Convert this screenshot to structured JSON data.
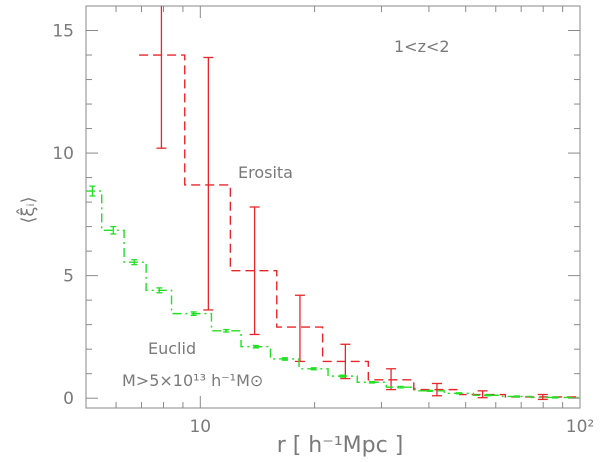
{
  "chart_data": {
    "type": "line",
    "title": "",
    "xlabel": "r [ h⁻¹Mpc ]",
    "ylabel": "⟨ξ̂ᵢ⟩",
    "xscale": "log",
    "xlim": [
      5,
      100
    ],
    "ylim": [
      -0.4,
      16
    ],
    "xticks": [
      {
        "value": 10,
        "label": "10"
      },
      {
        "value": 100,
        "label": "10²"
      }
    ],
    "yticks": [
      {
        "value": 0,
        "label": "0"
      },
      {
        "value": 5,
        "label": "5"
      },
      {
        "value": 10,
        "label": "10"
      },
      {
        "value": 15,
        "label": "15"
      }
    ],
    "annotations": {
      "redshift": "1<z<2",
      "mass_cut": "M>5×10¹³ h⁻¹M⊙"
    },
    "series": [
      {
        "name": "Erosita",
        "color": "#e8262a",
        "style": "dashed-step",
        "bins": [
          {
            "x0": 6.9,
            "x1": 9.1,
            "xc": 7.9,
            "y": 14.0,
            "err_lo": 10.2,
            "err_hi": 16.0
          },
          {
            "x0": 9.1,
            "x1": 12.0,
            "xc": 10.5,
            "y": 8.7,
            "err_lo": 3.6,
            "err_hi": 13.9
          },
          {
            "x0": 12.0,
            "x1": 15.9,
            "xc": 13.9,
            "y": 5.2,
            "err_lo": 2.6,
            "err_hi": 7.8
          },
          {
            "x0": 15.9,
            "x1": 21.0,
            "xc": 18.3,
            "y": 2.9,
            "err_lo": 1.5,
            "err_hi": 4.2
          },
          {
            "x0": 21.0,
            "x1": 27.7,
            "xc": 24.1,
            "y": 1.5,
            "err_lo": 0.8,
            "err_hi": 2.2
          },
          {
            "x0": 27.7,
            "x1": 36.5,
            "xc": 31.8,
            "y": 0.75,
            "err_lo": 0.35,
            "err_hi": 1.2
          },
          {
            "x0": 36.5,
            "x1": 48.2,
            "xc": 42.0,
            "y": 0.35,
            "err_lo": 0.1,
            "err_hi": 0.6
          },
          {
            "x0": 48.2,
            "x1": 63.6,
            "xc": 55.4,
            "y": 0.15,
            "err_lo": 0.02,
            "err_hi": 0.3
          },
          {
            "x0": 63.6,
            "x1": 100,
            "xc": 79.8,
            "y": 0.05,
            "err_lo": -0.05,
            "err_hi": 0.15
          }
        ]
      },
      {
        "name": "Euclid",
        "color": "#22e022",
        "style": "dashdot-step",
        "bins": [
          {
            "x0": 5.0,
            "x1": 5.5,
            "xc": 5.2,
            "y": 8.45,
            "err_lo": 8.25,
            "err_hi": 8.65
          },
          {
            "x0": 5.5,
            "x1": 6.3,
            "xc": 5.9,
            "y": 6.85,
            "err_lo": 6.7,
            "err_hi": 7.0
          },
          {
            "x0": 6.3,
            "x1": 7.2,
            "xc": 6.7,
            "y": 5.55,
            "err_lo": 5.45,
            "err_hi": 5.65
          },
          {
            "x0": 7.2,
            "x1": 8.4,
            "xc": 7.8,
            "y": 4.4,
            "err_lo": 4.3,
            "err_hi": 4.5
          },
          {
            "x0": 8.4,
            "x1": 10.7,
            "xc": 9.6,
            "y": 3.45,
            "err_lo": 3.38,
            "err_hi": 3.52
          },
          {
            "x0": 10.7,
            "x1": 12.8,
            "xc": 11.7,
            "y": 2.75,
            "err_lo": 2.7,
            "err_hi": 2.8
          },
          {
            "x0": 12.8,
            "x1": 15.3,
            "xc": 14.0,
            "y": 2.1,
            "err_lo": 2.05,
            "err_hi": 2.15
          },
          {
            "x0": 15.3,
            "x1": 18.2,
            "xc": 16.7,
            "y": 1.6,
            "err_lo": 1.55,
            "err_hi": 1.65
          },
          {
            "x0": 18.2,
            "x1": 21.7,
            "xc": 19.9,
            "y": 1.2,
            "err_lo": 1.16,
            "err_hi": 1.24
          },
          {
            "x0": 21.7,
            "x1": 25.9,
            "xc": 23.7,
            "y": 0.9,
            "err_lo": 0.86,
            "err_hi": 0.94
          },
          {
            "x0": 25.9,
            "x1": 30.9,
            "xc": 28.3,
            "y": 0.65,
            "err_lo": 0.62,
            "err_hi": 0.68
          },
          {
            "x0": 30.9,
            "x1": 36.8,
            "xc": 33.7,
            "y": 0.45,
            "err_lo": 0.42,
            "err_hi": 0.48
          },
          {
            "x0": 36.8,
            "x1": 43.9,
            "xc": 40.2,
            "y": 0.3,
            "err_lo": 0.28,
            "err_hi": 0.32
          },
          {
            "x0": 43.9,
            "x1": 52.4,
            "xc": 48.0,
            "y": 0.2,
            "err_lo": 0.18,
            "err_hi": 0.22
          },
          {
            "x0": 52.4,
            "x1": 62.5,
            "xc": 57.2,
            "y": 0.12,
            "err_lo": 0.1,
            "err_hi": 0.14
          },
          {
            "x0": 62.5,
            "x1": 74.5,
            "xc": 68.2,
            "y": 0.07,
            "err_lo": 0.05,
            "err_hi": 0.09
          },
          {
            "x0": 74.5,
            "x1": 100,
            "xc": 86.0,
            "y": 0.03,
            "err_lo": 0.01,
            "err_hi": 0.05
          }
        ]
      }
    ]
  }
}
